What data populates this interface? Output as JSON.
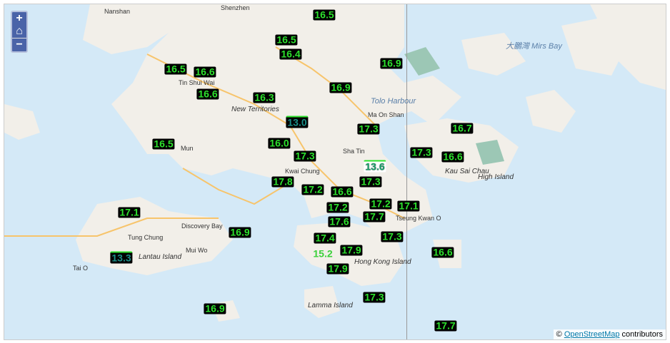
{
  "controls": {
    "zoom_in": "+",
    "home": "⌂",
    "zoom_out": "−"
  },
  "colors": {
    "water": "#d4e9f7",
    "land": "#f2efe9",
    "label_text": "#2de02d",
    "label_bg": "#000000"
  },
  "places": [
    "Nanshan",
    "Shenzhen",
    "Tin Shui Wai",
    "New Territories",
    "Sha Tin",
    "Ma On Shan",
    "Kwai Chung",
    "Tung Chung",
    "Lantau Island",
    "Discovery Bay",
    "Mui Wo",
    "Tai O",
    "Hong Kong Island",
    "Lamma Island",
    "Tseung Kwan O",
    "Kau Sai Chau",
    "High Island",
    "Tolo Harbour",
    "Mun",
    "大鵬灣 Mirs Bay"
  ],
  "temperatures": [
    "16.5",
    "16.5",
    "16.4",
    "16.9",
    "16.5",
    "16.6",
    "16.9",
    "16.6",
    "16.3",
    "13.0",
    "17.3",
    "16.7",
    "16.5",
    "16.0",
    "17.3",
    "17.3",
    "16.6",
    "13.6",
    "17.8",
    "17.2",
    "16.6",
    "17.3",
    "17.2",
    "17.1",
    "17.1",
    "17.2",
    "17.7",
    "17.6",
    "16.9",
    "17.4",
    "17.3",
    "15.2",
    "17.9",
    "16.6",
    "13.3",
    "17.9",
    "17.3",
    "16.9",
    "17.7"
  ],
  "attribution": {
    "prefix": "© ",
    "link": "OpenStreetMap",
    "suffix": " contributors"
  }
}
